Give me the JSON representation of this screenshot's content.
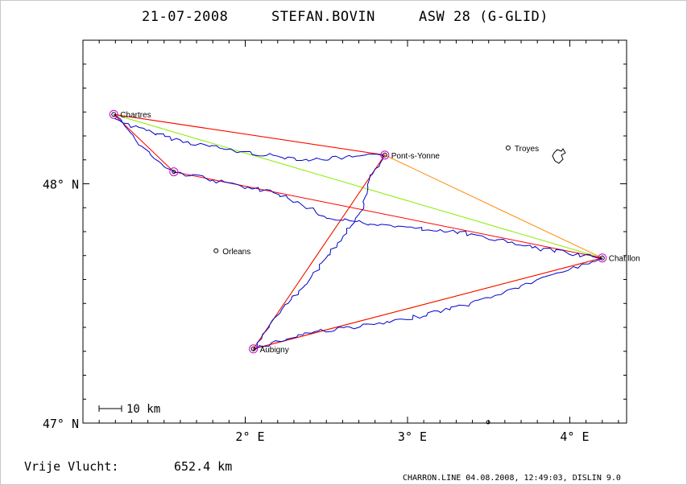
{
  "header": {
    "date": "21-07-2008",
    "pilot": "STEFAN.BOVIN",
    "glider": "ASW 28 (G-GLID)"
  },
  "axes": {
    "lon_range": [
      1.0,
      4.35
    ],
    "lat_range": [
      47.0,
      48.6
    ],
    "lat_ticks": [
      {
        "value": 48.0,
        "label": "48° N"
      },
      {
        "value": 47.0,
        "label": "47° N"
      }
    ],
    "lon_ticks": [
      {
        "value": 2.0,
        "label": "2° E"
      },
      {
        "value": 3.0,
        "label": "3° E"
      },
      {
        "value": 4.0,
        "label": "4° E"
      }
    ]
  },
  "scale_bar": {
    "label": "10 km",
    "km": 10
  },
  "places": [
    {
      "name": "Chartres",
      "lon": 1.19,
      "lat": 48.29,
      "kind": "turnpoint"
    },
    {
      "name": "Pont-s-Yonne",
      "lon": 2.86,
      "lat": 48.12,
      "kind": "turnpoint"
    },
    {
      "name": "Chatillon",
      "lon": 4.2,
      "lat": 47.69,
      "kind": "turnpoint"
    },
    {
      "name": "Aubigny",
      "lon": 2.05,
      "lat": 47.31,
      "kind": "turnpoint"
    },
    {
      "name": "Orleans",
      "lon": 1.82,
      "lat": 47.72,
      "kind": "city"
    },
    {
      "name": "Troyes",
      "lon": 3.62,
      "lat": 48.15,
      "kind": "city"
    }
  ],
  "extra_markers": [
    {
      "lon": 1.56,
      "lat": 48.05
    }
  ],
  "routes": {
    "declared": {
      "color": "#ff0000",
      "points": [
        [
          1.19,
          48.29
        ],
        [
          2.86,
          48.12
        ],
        [
          2.05,
          47.31
        ],
        [
          4.2,
          47.69
        ],
        [
          1.56,
          48.05
        ],
        [
          1.19,
          48.29
        ]
      ]
    },
    "optimised": {
      "color": "#ff8800",
      "points": [
        [
          1.19,
          48.29
        ],
        [
          2.86,
          48.12
        ],
        [
          4.2,
          47.69
        ],
        [
          2.05,
          47.31
        ],
        [
          4.2,
          47.69
        ]
      ]
    },
    "flight_legs": {
      "color": "#88ee00",
      "points": [
        [
          1.19,
          48.29
        ],
        [
          4.2,
          47.69
        ],
        [
          2.05,
          47.31
        ],
        [
          2.86,
          48.12
        ]
      ]
    }
  },
  "track_color": "#0000cc",
  "footer": {
    "distance_label": "Vrije Vlucht:",
    "distance_value": "652.4 km",
    "credit": "CHARRON.LINE 04.08.2008, 12:49:03, DISLIN 9.0"
  }
}
